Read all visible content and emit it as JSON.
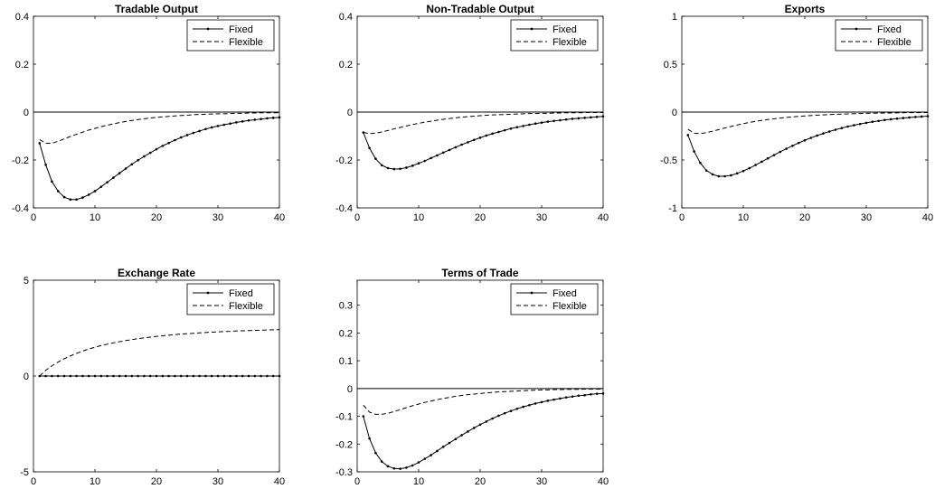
{
  "figure": {
    "panels": [
      {
        "title": "Tradable Output",
        "ylim": [
          -0.4,
          0.4
        ],
        "yticks": [
          -0.4,
          -0.2,
          0,
          0.2,
          0.4
        ]
      },
      {
        "title": "Non-Tradable Output",
        "ylim": [
          -0.4,
          0.4
        ],
        "yticks": [
          -0.4,
          -0.2,
          0,
          0.2,
          0.4
        ]
      },
      {
        "title": "Exports",
        "ylim": [
          -1,
          1
        ],
        "yticks": [
          -1,
          -0.5,
          0,
          0.5,
          1
        ]
      },
      {
        "title": "Exchange Rate",
        "ylim": [
          -5,
          5
        ],
        "yticks": [
          -5,
          0,
          5
        ]
      },
      {
        "title": "Terms of Trade",
        "ylim": [
          -0.3,
          0.39
        ],
        "yticks": [
          -0.3,
          -0.2,
          -0.1,
          0,
          0.1,
          0.2,
          0.3
        ]
      }
    ]
  },
  "legend": {
    "fixed_label": "Fixed",
    "flexible_label": "Flexible"
  },
  "colors": {
    "line": "#000000",
    "axes": "#000000",
    "background": "#ffffff"
  },
  "chart_data": [
    {
      "type": "line",
      "title": "Tradable Output",
      "xlim": [
        0,
        40
      ],
      "ylim": [
        -0.4,
        0.4
      ],
      "xticks": [
        0,
        10,
        20,
        30,
        40
      ],
      "yticks": [
        -0.4,
        -0.2,
        0,
        0.2,
        0.4
      ],
      "legend_position": "top-right",
      "zero_line": true,
      "series": [
        {
          "name": "Fixed",
          "style": "solid-dots",
          "x_start": 1,
          "x_step": 1,
          "values": [
            -0.13,
            -0.22,
            -0.29,
            -0.33,
            -0.355,
            -0.365,
            -0.365,
            -0.357,
            -0.345,
            -0.33,
            -0.312,
            -0.293,
            -0.274,
            -0.255,
            -0.236,
            -0.218,
            -0.201,
            -0.185,
            -0.17,
            -0.155,
            -0.141,
            -0.129,
            -0.117,
            -0.106,
            -0.096,
            -0.087,
            -0.079,
            -0.071,
            -0.064,
            -0.058,
            -0.053,
            -0.048,
            -0.043,
            -0.039,
            -0.035,
            -0.032,
            -0.029,
            -0.026,
            -0.024,
            -0.022
          ]
        },
        {
          "name": "Flexible",
          "style": "dashed",
          "x_start": 1,
          "x_step": 1,
          "values": [
            -0.115,
            -0.13,
            -0.13,
            -0.122,
            -0.112,
            -0.102,
            -0.093,
            -0.084,
            -0.075,
            -0.068,
            -0.061,
            -0.055,
            -0.049,
            -0.044,
            -0.039,
            -0.035,
            -0.031,
            -0.028,
            -0.025,
            -0.022,
            -0.02,
            -0.018,
            -0.016,
            -0.014,
            -0.013,
            -0.011,
            -0.01,
            -0.009,
            -0.008,
            -0.007,
            -0.007,
            -0.006,
            -0.005,
            -0.005,
            -0.004,
            -0.004,
            -0.003,
            -0.003,
            -0.003,
            -0.003
          ]
        }
      ]
    },
    {
      "type": "line",
      "title": "Non-Tradable Output",
      "xlim": [
        0,
        40
      ],
      "ylim": [
        -0.4,
        0.4
      ],
      "xticks": [
        0,
        10,
        20,
        30,
        40
      ],
      "yticks": [
        -0.4,
        -0.2,
        0,
        0.2,
        0.4
      ],
      "legend_position": "top-right",
      "zero_line": true,
      "series": [
        {
          "name": "Fixed",
          "style": "solid-dots",
          "x_start": 1,
          "x_step": 1,
          "values": [
            -0.085,
            -0.15,
            -0.195,
            -0.222,
            -0.234,
            -0.238,
            -0.237,
            -0.232,
            -0.224,
            -0.214,
            -0.204,
            -0.192,
            -0.181,
            -0.169,
            -0.158,
            -0.147,
            -0.136,
            -0.126,
            -0.116,
            -0.107,
            -0.098,
            -0.09,
            -0.083,
            -0.076,
            -0.069,
            -0.063,
            -0.058,
            -0.053,
            -0.048,
            -0.044,
            -0.04,
            -0.037,
            -0.034,
            -0.031,
            -0.028,
            -0.026,
            -0.024,
            -0.022,
            -0.02,
            -0.018
          ]
        },
        {
          "name": "Flexible",
          "style": "dashed",
          "x_start": 1,
          "x_step": 1,
          "values": [
            -0.085,
            -0.09,
            -0.088,
            -0.083,
            -0.077,
            -0.07,
            -0.064,
            -0.058,
            -0.052,
            -0.047,
            -0.042,
            -0.038,
            -0.034,
            -0.03,
            -0.027,
            -0.024,
            -0.021,
            -0.019,
            -0.017,
            -0.015,
            -0.013,
            -0.012,
            -0.011,
            -0.01,
            -0.009,
            -0.008,
            -0.007,
            -0.006,
            -0.006,
            -0.005,
            -0.005,
            -0.004,
            -0.004,
            -0.003,
            -0.003,
            -0.003,
            -0.002,
            -0.002,
            -0.002,
            -0.002
          ]
        }
      ]
    },
    {
      "type": "line",
      "title": "Exports",
      "xlim": [
        0,
        40
      ],
      "ylim": [
        -1,
        1
      ],
      "xticks": [
        0,
        10,
        20,
        30,
        40
      ],
      "yticks": [
        -1,
        -0.5,
        0,
        0.5,
        1
      ],
      "legend_position": "top-right",
      "zero_line": true,
      "series": [
        {
          "name": "Fixed",
          "style": "solid-dots",
          "x_start": 1,
          "x_step": 1,
          "values": [
            -0.24,
            -0.41,
            -0.53,
            -0.61,
            -0.65,
            -0.67,
            -0.67,
            -0.66,
            -0.64,
            -0.615,
            -0.585,
            -0.552,
            -0.518,
            -0.483,
            -0.449,
            -0.415,
            -0.383,
            -0.352,
            -0.322,
            -0.295,
            -0.269,
            -0.245,
            -0.223,
            -0.203,
            -0.184,
            -0.167,
            -0.151,
            -0.137,
            -0.124,
            -0.112,
            -0.101,
            -0.092,
            -0.083,
            -0.075,
            -0.068,
            -0.062,
            -0.056,
            -0.051,
            -0.047,
            -0.043
          ]
        },
        {
          "name": "Flexible",
          "style": "dashed",
          "x_start": 1,
          "x_step": 1,
          "values": [
            -0.18,
            -0.22,
            -0.225,
            -0.215,
            -0.2,
            -0.183,
            -0.166,
            -0.15,
            -0.135,
            -0.121,
            -0.108,
            -0.097,
            -0.087,
            -0.078,
            -0.07,
            -0.062,
            -0.056,
            -0.05,
            -0.045,
            -0.04,
            -0.036,
            -0.032,
            -0.029,
            -0.026,
            -0.023,
            -0.021,
            -0.019,
            -0.017,
            -0.015,
            -0.013,
            -0.012,
            -0.011,
            -0.01,
            -0.009,
            -0.008,
            -0.007,
            -0.006,
            -0.006,
            -0.005,
            -0.005
          ]
        }
      ]
    },
    {
      "type": "line",
      "title": "Exchange Rate",
      "xlim": [
        0,
        40
      ],
      "ylim": [
        -5,
        5
      ],
      "xticks": [
        0,
        10,
        20,
        30,
        40
      ],
      "yticks": [
        -5,
        0,
        5
      ],
      "legend_position": "top-right",
      "zero_line": false,
      "series": [
        {
          "name": "Fixed",
          "style": "solid-dots",
          "x_start": 1,
          "x_step": 1,
          "values": [
            0,
            0,
            0,
            0,
            0,
            0,
            0,
            0,
            0,
            0,
            0,
            0,
            0,
            0,
            0,
            0,
            0,
            0,
            0,
            0,
            0,
            0,
            0,
            0,
            0,
            0,
            0,
            0,
            0,
            0,
            0,
            0,
            0,
            0,
            0,
            0,
            0,
            0,
            0,
            0
          ]
        },
        {
          "name": "Flexible",
          "style": "dashed",
          "x_start": 1,
          "x_step": 1,
          "values": [
            0.0,
            0.3,
            0.53,
            0.73,
            0.9,
            1.05,
            1.18,
            1.3,
            1.41,
            1.5,
            1.59,
            1.66,
            1.73,
            1.79,
            1.85,
            1.9,
            1.95,
            1.99,
            2.03,
            2.07,
            2.1,
            2.13,
            2.16,
            2.19,
            2.21,
            2.23,
            2.25,
            2.27,
            2.29,
            2.3,
            2.32,
            2.33,
            2.35,
            2.36,
            2.37,
            2.38,
            2.39,
            2.4,
            2.41,
            2.42
          ]
        }
      ]
    },
    {
      "type": "line",
      "title": "Terms of Trade",
      "xlim": [
        0,
        40
      ],
      "ylim": [
        -0.3,
        0.39
      ],
      "xticks": [
        0,
        10,
        20,
        30,
        40
      ],
      "yticks": [
        -0.3,
        -0.2,
        -0.1,
        0,
        0.1,
        0.2,
        0.3
      ],
      "legend_position": "top-right",
      "zero_line": true,
      "series": [
        {
          "name": "Fixed",
          "style": "solid-dots",
          "x_start": 1,
          "x_step": 1,
          "values": [
            -0.1,
            -0.18,
            -0.232,
            -0.263,
            -0.28,
            -0.288,
            -0.289,
            -0.285,
            -0.277,
            -0.266,
            -0.253,
            -0.24,
            -0.225,
            -0.21,
            -0.196,
            -0.182,
            -0.168,
            -0.155,
            -0.142,
            -0.13,
            -0.119,
            -0.108,
            -0.098,
            -0.089,
            -0.081,
            -0.073,
            -0.066,
            -0.06,
            -0.054,
            -0.049,
            -0.044,
            -0.04,
            -0.036,
            -0.032,
            -0.029,
            -0.026,
            -0.024,
            -0.021,
            -0.019,
            -0.018
          ]
        },
        {
          "name": "Flexible",
          "style": "dashed",
          "x_start": 1,
          "x_step": 1,
          "values": [
            -0.06,
            -0.085,
            -0.093,
            -0.093,
            -0.089,
            -0.083,
            -0.076,
            -0.069,
            -0.062,
            -0.056,
            -0.05,
            -0.045,
            -0.04,
            -0.036,
            -0.032,
            -0.028,
            -0.025,
            -0.022,
            -0.02,
            -0.018,
            -0.016,
            -0.014,
            -0.012,
            -0.011,
            -0.01,
            -0.009,
            -0.008,
            -0.007,
            -0.006,
            -0.005,
            -0.005,
            -0.004,
            -0.004,
            -0.003,
            -0.003,
            -0.003,
            -0.002,
            -0.002,
            -0.002,
            -0.002
          ]
        }
      ]
    }
  ]
}
